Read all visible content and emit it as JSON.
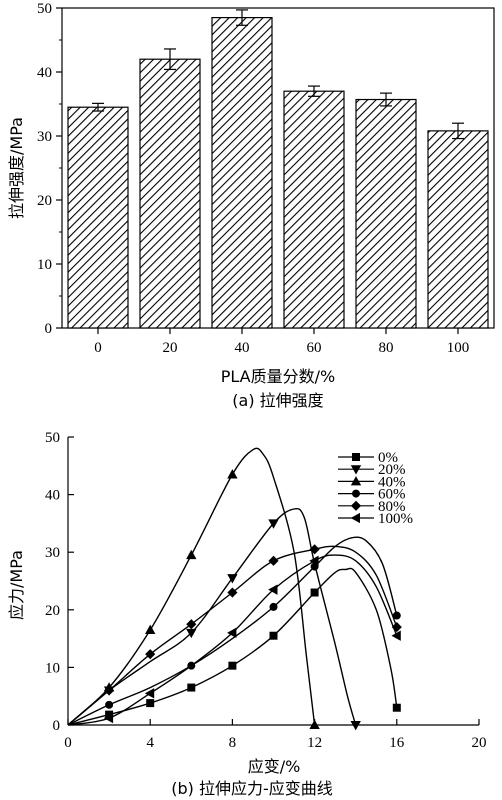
{
  "chart_data": [
    {
      "type": "bar",
      "caption": "(a) 拉伸强度",
      "xlabel": "PLA质量分数/%",
      "ylabel": "拉伸强度/MPa",
      "categories": [
        "0",
        "20",
        "40",
        "60",
        "80",
        "100"
      ],
      "values": [
        34.5,
        42.0,
        48.5,
        37.0,
        35.7,
        30.8
      ],
      "errors": [
        0.6,
        1.6,
        1.2,
        0.8,
        1.0,
        1.2
      ],
      "ylim": [
        0,
        50
      ],
      "yticks": [
        "0",
        "10",
        "20",
        "30",
        "40",
        "50"
      ],
      "fill_pattern": "diagonal-hatch",
      "grid": false
    },
    {
      "type": "line",
      "caption": "(b) 拉伸应力-应变曲线",
      "xlabel": "应变/%",
      "ylabel": "应力/MPa",
      "xlim": [
        0,
        20
      ],
      "ylim": [
        0,
        50
      ],
      "xticks": [
        "0",
        "4",
        "8",
        "12",
        "16",
        "20"
      ],
      "yticks": [
        "0",
        "10",
        "20",
        "30",
        "40",
        "50"
      ],
      "legend_position": "top-right",
      "grid": false,
      "series": [
        {
          "name": "0%",
          "marker": "square",
          "curve": [
            [
              0,
              0
            ],
            [
              2,
              1.8
            ],
            [
              4,
              3.8
            ],
            [
              6,
              6.5
            ],
            [
              8,
              10.3
            ],
            [
              10,
              15.5
            ],
            [
              12,
              23
            ],
            [
              13,
              26.5
            ],
            [
              13.5,
              27
            ],
            [
              14,
              26.5
            ],
            [
              15,
              20
            ],
            [
              15.7,
              10
            ],
            [
              16,
              3
            ]
          ],
          "markers": [
            [
              2,
              1.8
            ],
            [
              4,
              3.8
            ],
            [
              6,
              6.5
            ],
            [
              8,
              10.3
            ],
            [
              10,
              15.5
            ],
            [
              12,
              23
            ],
            [
              16,
              3
            ]
          ]
        },
        {
          "name": "20%",
          "marker": "triangle-down",
          "curve": [
            [
              0,
              0
            ],
            [
              2,
              6
            ],
            [
              4,
              11
            ],
            [
              6,
              16
            ],
            [
              8,
              25.5
            ],
            [
              10,
              35
            ],
            [
              11,
              37.5
            ],
            [
              11.5,
              36
            ],
            [
              12,
              28
            ],
            [
              13,
              14
            ],
            [
              13.6,
              5
            ],
            [
              14,
              0
            ]
          ],
          "markers": [
            [
              2,
              6
            ],
            [
              6,
              16
            ],
            [
              8,
              25.5
            ],
            [
              10,
              35
            ],
            [
              14,
              0
            ]
          ]
        },
        {
          "name": "40%",
          "marker": "triangle-up",
          "curve": [
            [
              0,
              0
            ],
            [
              2,
              6.5
            ],
            [
              4,
              16.5
            ],
            [
              6,
              29.5
            ],
            [
              8,
              43.5
            ],
            [
              9,
              47.8
            ],
            [
              9.5,
              47
            ],
            [
              10,
              43
            ],
            [
              11,
              30
            ],
            [
              11.6,
              12
            ],
            [
              12,
              0
            ]
          ],
          "markers": [
            [
              2,
              6.5
            ],
            [
              4,
              16.5
            ],
            [
              6,
              29.5
            ],
            [
              8,
              43.5
            ],
            [
              12,
              0
            ]
          ]
        },
        {
          "name": "60%",
          "marker": "circle",
          "curve": [
            [
              0,
              0
            ],
            [
              2,
              3.5
            ],
            [
              4,
              6.5
            ],
            [
              6,
              10.3
            ],
            [
              8,
              15
            ],
            [
              10,
              20.5
            ],
            [
              12,
              27.5
            ],
            [
              13,
              31
            ],
            [
              13.8,
              32.5
            ],
            [
              14.5,
              32
            ],
            [
              15.3,
              28
            ],
            [
              16,
              19
            ]
          ],
          "markers": [
            [
              2,
              3.5
            ],
            [
              6,
              10.3
            ],
            [
              10,
              20.5
            ],
            [
              12,
              27.5
            ],
            [
              16,
              19
            ]
          ]
        },
        {
          "name": "80%",
          "marker": "diamond",
          "curve": [
            [
              0,
              0
            ],
            [
              2,
              6
            ],
            [
              4,
              12.3
            ],
            [
              6,
              17.5
            ],
            [
              8,
              23
            ],
            [
              10,
              28.5
            ],
            [
              12,
              30.5
            ],
            [
              13,
              31
            ],
            [
              14,
              30
            ],
            [
              15,
              26
            ],
            [
              16,
              17
            ]
          ],
          "markers": [
            [
              2,
              6
            ],
            [
              4,
              12.3
            ],
            [
              6,
              17.5
            ],
            [
              8,
              23
            ],
            [
              10,
              28.5
            ],
            [
              12,
              30.5
            ],
            [
              16,
              17
            ]
          ]
        },
        {
          "name": "100%",
          "marker": "triangle-left",
          "curve": [
            [
              0,
              0
            ],
            [
              2,
              1.2
            ],
            [
              4,
              5.5
            ],
            [
              6,
              10.3
            ],
            [
              8,
              16
            ],
            [
              10,
              23.5
            ],
            [
              12,
              28.5
            ],
            [
              13,
              29.5
            ],
            [
              14,
              28.5
            ],
            [
              15,
              24
            ],
            [
              16,
              15.5
            ]
          ],
          "markers": [
            [
              2,
              1.2
            ],
            [
              4,
              5.5
            ],
            [
              8,
              16
            ],
            [
              10,
              23.5
            ],
            [
              12,
              28.5
            ],
            [
              16,
              15.5
            ]
          ]
        }
      ]
    }
  ]
}
